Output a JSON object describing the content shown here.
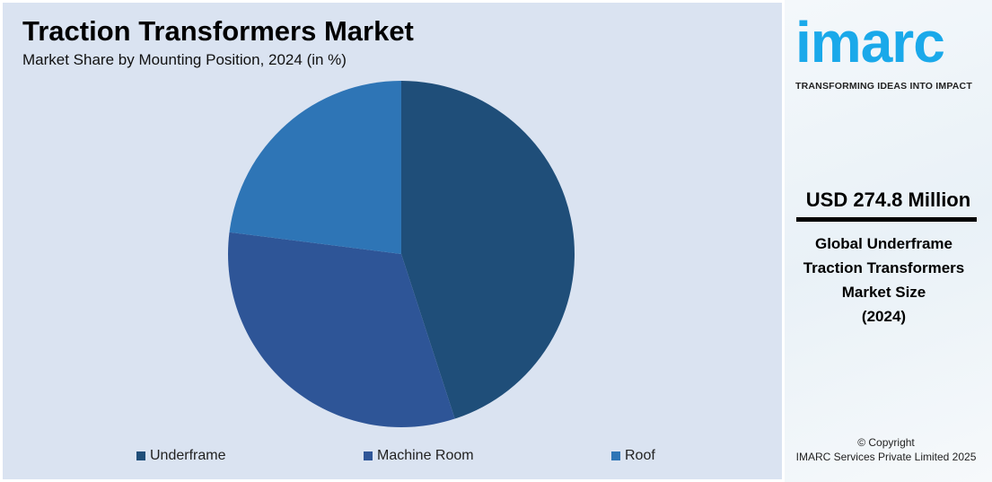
{
  "chart_data": {
    "type": "pie",
    "title": "Traction Transformers Market",
    "subtitle": "Market Share by Mounting Position, 2024 (in %)",
    "categories": [
      "Underframe",
      "Machine Room",
      "Roof"
    ],
    "values": [
      45,
      32,
      23
    ],
    "colors": [
      "#1f4e79",
      "#2e5597",
      "#2e75b6"
    ],
    "legend_position": "bottom"
  },
  "panel": {
    "logo": "imarc",
    "tagline": "TRANSFORMING IDEAS INTO IMPACT",
    "value": "USD 274.8 Million",
    "desc": [
      "Global Underframe",
      "Traction Transformers",
      "Market Size",
      "(2024)"
    ],
    "copyright": "© Copyright",
    "company": "IMARC Services Private Limited 2025",
    "brand_color": "#1aa9ea"
  }
}
